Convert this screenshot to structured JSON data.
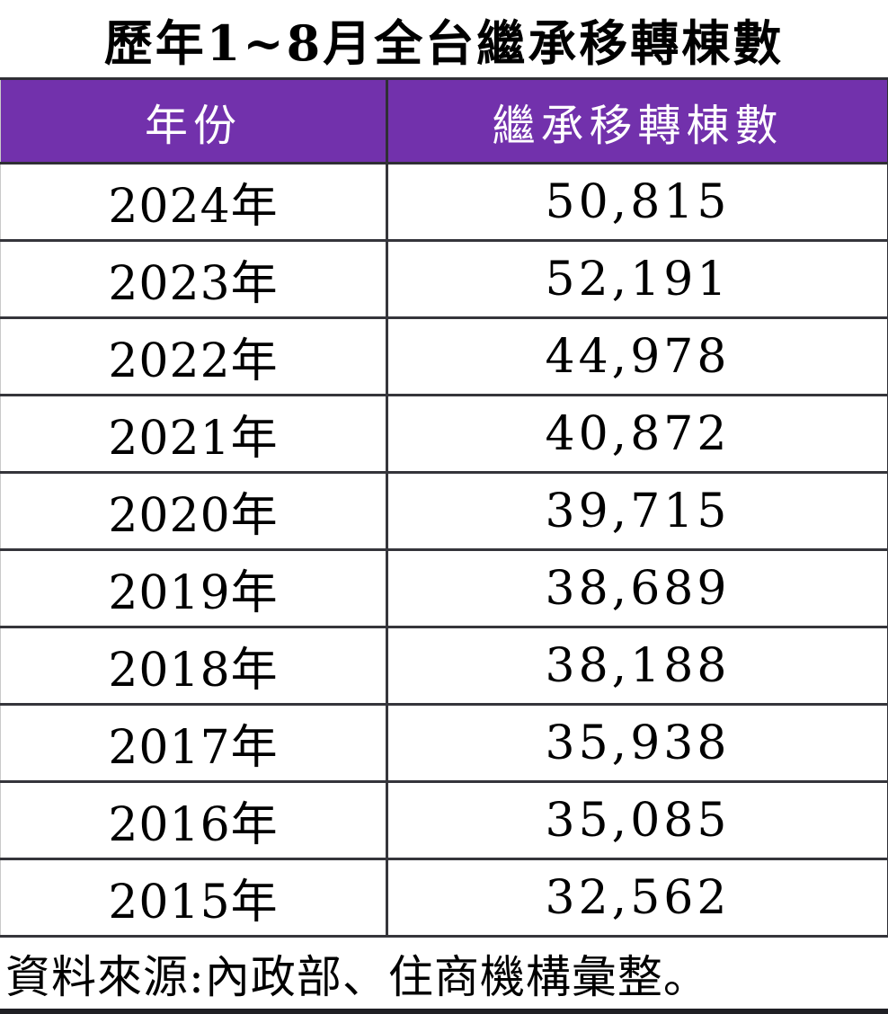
{
  "title": "歷年1~8月全台繼承移轉棟數",
  "table": {
    "columns": [
      "年份",
      "繼承移轉棟數"
    ],
    "rows": [
      {
        "year": "2024年",
        "count": "50,815"
      },
      {
        "year": "2023年",
        "count": "52,191"
      },
      {
        "year": "2022年",
        "count": "44,978"
      },
      {
        "year": "2021年",
        "count": "40,872"
      },
      {
        "year": "2020年",
        "count": "39,715"
      },
      {
        "year": "2019年",
        "count": "38,689"
      },
      {
        "year": "2018年",
        "count": "38,188"
      },
      {
        "year": "2017年",
        "count": "35,938"
      },
      {
        "year": "2016年",
        "count": "35,085"
      },
      {
        "year": "2015年",
        "count": "32,562"
      }
    ]
  },
  "footer": "資料來源:內政部、住商機構彙整。",
  "colors": {
    "header_bg": "#7231ac",
    "header_text": "#ffffff",
    "border_dark": "#2f2f35",
    "body_text": "#000000",
    "background": "#ffffff"
  },
  "chart_data": {
    "type": "table",
    "title": "歷年1~8月全台繼承移轉棟數",
    "columns": [
      "年份",
      "繼承移轉棟數"
    ],
    "categories": [
      "2024年",
      "2023年",
      "2022年",
      "2021年",
      "2020年",
      "2019年",
      "2018年",
      "2017年",
      "2016年",
      "2015年"
    ],
    "values": [
      50815,
      52191,
      44978,
      40872,
      39715,
      38689,
      38188,
      35938,
      35085,
      32562
    ],
    "source": "資料來源:內政部、住商機構彙整。"
  }
}
